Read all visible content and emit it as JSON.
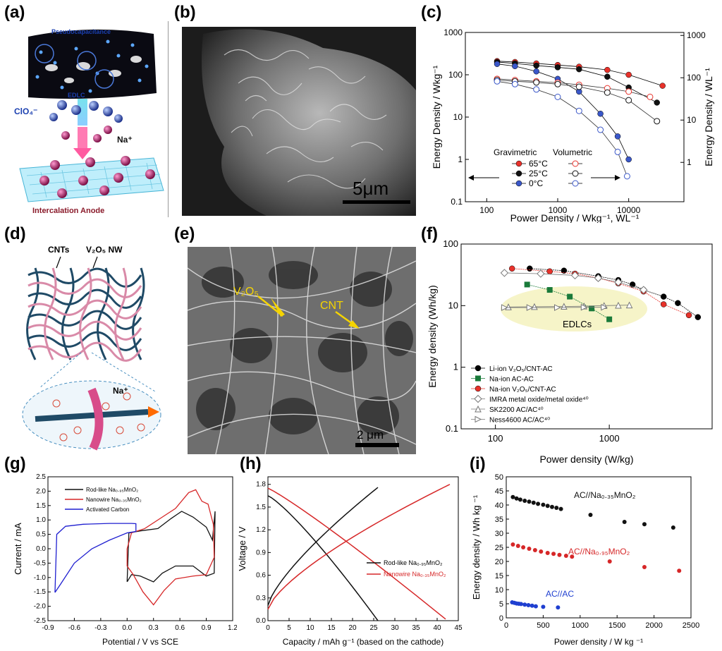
{
  "panel_labels": {
    "a": "(a)",
    "b": "(b)",
    "c": "(c)",
    "d": "(d)",
    "e": "(e)",
    "f": "(f)",
    "g": "(g)",
    "h": "(h)",
    "i": "(i)"
  },
  "panel_a": {
    "pseudo_label": "Pseudocapacitance",
    "edlc_label": "EDLC",
    "anion_label": "ClO₄⁻",
    "cation_label": "Na⁺",
    "anode_label": "Intercalation Anode"
  },
  "panel_b": {
    "scale_bar": "5μm"
  },
  "panel_e": {
    "scale_bar": "2 μm",
    "v2o5_label": "V₂O₅",
    "cnt_label": "CNT"
  },
  "panel_d": {
    "cnt_label": "CNTs",
    "v2o5_label": "V₂O₅ NW",
    "na_label": "Na⁺"
  },
  "chart_c": {
    "type": "line",
    "xlabel": "Power Density / Wkg⁻¹, WL⁻¹",
    "ylabel_left": "Energy Density / Wkg⁻¹",
    "ylabel_right": "Energy Density / WL⁻¹",
    "x_scale": "log",
    "y_scale": "log",
    "xlim": [
      50,
      60000
    ],
    "ylim": [
      0.1,
      1000
    ],
    "xticks": [
      "100",
      "1000",
      "10000"
    ],
    "yticks_left": [
      "0.1",
      "1",
      "10",
      "100",
      "1000"
    ],
    "yticks_right": [
      "1",
      "10",
      "100",
      "1000"
    ],
    "legend_gravimetric": "Gravimetric",
    "legend_volumetric": "Volumetric",
    "legend_temps": [
      "65°C",
      "25°C",
      "0°C"
    ],
    "colors": {
      "65C": "#e8312a",
      "25C": "#111111",
      "0C": "#3a57c9"
    },
    "series": [
      {
        "name": "65°C",
        "kind": "gravimetric",
        "x": [
          140,
          250,
          500,
          1000,
          2000,
          5000,
          10000,
          30000
        ],
        "y": [
          210,
          200,
          185,
          170,
          155,
          130,
          100,
          55
        ]
      },
      {
        "name": "25°C",
        "kind": "gravimetric",
        "x": [
          140,
          250,
          500,
          1000,
          2000,
          5000,
          10000,
          25000
        ],
        "y": [
          200,
          185,
          165,
          150,
          135,
          90,
          50,
          22
        ]
      },
      {
        "name": "0°C",
        "kind": "gravimetric",
        "x": [
          140,
          250,
          500,
          1000,
          2000,
          4000,
          7000,
          10000
        ],
        "y": [
          180,
          160,
          120,
          80,
          40,
          12,
          3.5,
          1
        ]
      },
      {
        "name": "65°C",
        "kind": "volumetric",
        "x": [
          140,
          250,
          500,
          1000,
          2000,
          5000,
          10000,
          20000
        ],
        "y": [
          80,
          75,
          70,
          65,
          58,
          48,
          40,
          30
        ]
      },
      {
        "name": "25°C",
        "kind": "volumetric",
        "x": [
          140,
          250,
          500,
          1000,
          2000,
          5000,
          10000,
          25000
        ],
        "y": [
          75,
          70,
          66,
          60,
          52,
          38,
          25,
          8
        ]
      },
      {
        "name": "0°C",
        "kind": "volumetric",
        "x": [
          140,
          250,
          500,
          1000,
          2000,
          4000,
          7000,
          9500
        ],
        "y": [
          70,
          60,
          45,
          30,
          14,
          5,
          1.5,
          0.4
        ]
      }
    ]
  },
  "chart_f": {
    "type": "line",
    "xlabel": "Power density (W/kg)",
    "ylabel": "Energy density (Wh/kg)",
    "x_scale": "log",
    "y_scale": "log",
    "xlim": [
      50,
      8000
    ],
    "ylim": [
      0.1,
      100
    ],
    "xticks": [
      "100",
      "1000"
    ],
    "yticks": [
      "0.1",
      "1",
      "10",
      "100"
    ],
    "edlc_label": "EDLCs",
    "series": [
      {
        "name": "Li-ion V₂O₅/CNT-AC",
        "marker": "filled-circle",
        "color": "#000000",
        "x": [
          200,
          400,
          800,
          1200,
          1600,
          2000,
          3000,
          4000,
          6000
        ],
        "y": [
          40,
          37,
          30,
          26,
          22,
          18,
          14,
          11,
          6.5
        ]
      },
      {
        "name": "Na-ion AC-AC",
        "marker": "filled-square",
        "color": "#1a7a3a",
        "x": [
          190,
          300,
          450,
          700,
          1000
        ],
        "y": [
          22,
          18,
          14,
          9,
          6
        ]
      },
      {
        "name": "Na-ion V₂O₅/CNT-AC",
        "marker": "filled-circle",
        "color": "#e8312a",
        "x": [
          140,
          300,
          500,
          800,
          1200,
          2000,
          3000,
          5000
        ],
        "y": [
          40,
          36,
          33,
          28,
          23,
          17,
          10.5,
          7
        ]
      },
      {
        "name": "IMRA metal oxide/metal oxide⁴⁰",
        "marker": "open-diamond",
        "color": "#777777",
        "x": [
          120,
          250,
          500,
          800,
          1200,
          2000
        ],
        "y": [
          34,
          33,
          31,
          28,
          24,
          18
        ]
      },
      {
        "name": "SK2200 AC/AC⁴⁰",
        "marker": "open-triangle-up",
        "color": "#777777",
        "x": [
          130,
          220,
          400,
          600,
          900,
          1200,
          1500
        ],
        "y": [
          9.5,
          9.6,
          9.7,
          9.8,
          10,
          10.1,
          10.2
        ]
      },
      {
        "name": "Ness4600 AC/AC⁴⁰",
        "marker": "open-triangle-right",
        "color": "#777777",
        "x": [
          120,
          200,
          350,
          600,
          900
        ],
        "y": [
          9.3,
          9.3,
          9.3,
          9.4,
          9.4
        ]
      }
    ]
  },
  "chart_g": {
    "type": "line",
    "xlabel": "Potential / V vs SCE",
    "ylabel": "Current / mA",
    "xlim": [
      -0.9,
      1.2
    ],
    "ylim": [
      -2.5,
      2.5
    ],
    "xticks": [
      "-0.9",
      "-0.6",
      "-0.3",
      "0.0",
      "0.3",
      "0.6",
      "0.9",
      "1.2"
    ],
    "yticks": [
      "-2.5",
      "-2.0",
      "-1.5",
      "-1.0",
      "-0.5",
      "0.0",
      "0.5",
      "1.0",
      "1.5",
      "2.0",
      "2.5"
    ],
    "legend": [
      "Rod-like Na₀.₉₅MnO₂",
      "Nanowire Na₀.₃₅MnO₂",
      "Activated Carbon"
    ],
    "colors": [
      "#111111",
      "#d62728",
      "#1f1fd0"
    ]
  },
  "chart_h": {
    "type": "line",
    "xlabel": "Capacity / mAh g⁻¹ (based on the cathode)",
    "ylabel": "Voltage / V",
    "xlim": [
      0,
      45
    ],
    "ylim": [
      0,
      1.9
    ],
    "xticks": [
      "0",
      "5",
      "10",
      "15",
      "20",
      "25",
      "30",
      "35",
      "40",
      "45"
    ],
    "yticks": [
      "0.0",
      "0.3",
      "0.6",
      "0.9",
      "1.2",
      "1.5",
      "1.8"
    ],
    "legend": [
      "Rod-like Na₀.₉₅MnO₂",
      "Nanowire Na₀.₃₅MnO₂"
    ],
    "colors": [
      "#111111",
      "#d62728"
    ]
  },
  "chart_i": {
    "type": "scatter",
    "xlabel": "Power density / W kg ⁻¹",
    "ylabel": "Energy density / Wh kg ⁻¹",
    "xlim": [
      0,
      2500
    ],
    "ylim": [
      0,
      50
    ],
    "xticks": [
      "0",
      "500",
      "1000",
      "1500",
      "2000",
      "2500"
    ],
    "yticks": [
      "0",
      "5",
      "10",
      "15",
      "20",
      "25",
      "30",
      "35",
      "40",
      "45",
      "50"
    ],
    "series": [
      {
        "name": "AC//Na₀.₃₅MnO₂",
        "color": "#111111",
        "x": [
          90,
          140,
          190,
          250,
          310,
          370,
          430,
          500,
          560,
          620,
          680,
          740,
          1140,
          1600,
          1870,
          2260
        ],
        "y": [
          42.8,
          42.3,
          41.9,
          41.5,
          41.2,
          40.8,
          40.4,
          40.1,
          39.7,
          39.3,
          39,
          38.6,
          36.5,
          34,
          33.2,
          32
        ]
      },
      {
        "name": "AC//Na₀.₉₅MnO₂",
        "color": "#d62728",
        "x": [
          90,
          160,
          230,
          310,
          390,
          470,
          560,
          640,
          720,
          810,
          890,
          1400,
          1870,
          2340
        ],
        "y": [
          26,
          25.5,
          25,
          24.5,
          24,
          23.5,
          23,
          22.7,
          22.3,
          22,
          21.7,
          20,
          18,
          16.7
        ]
      },
      {
        "name": "AC//AC",
        "color": "#1f3fd0",
        "x": [
          80,
          110,
          140,
          170,
          200,
          250,
          300,
          350,
          400,
          500,
          700
        ],
        "y": [
          5.5,
          5.3,
          5.1,
          5,
          4.9,
          4.7,
          4.5,
          4.3,
          4.1,
          3.9,
          3.7
        ]
      }
    ]
  }
}
